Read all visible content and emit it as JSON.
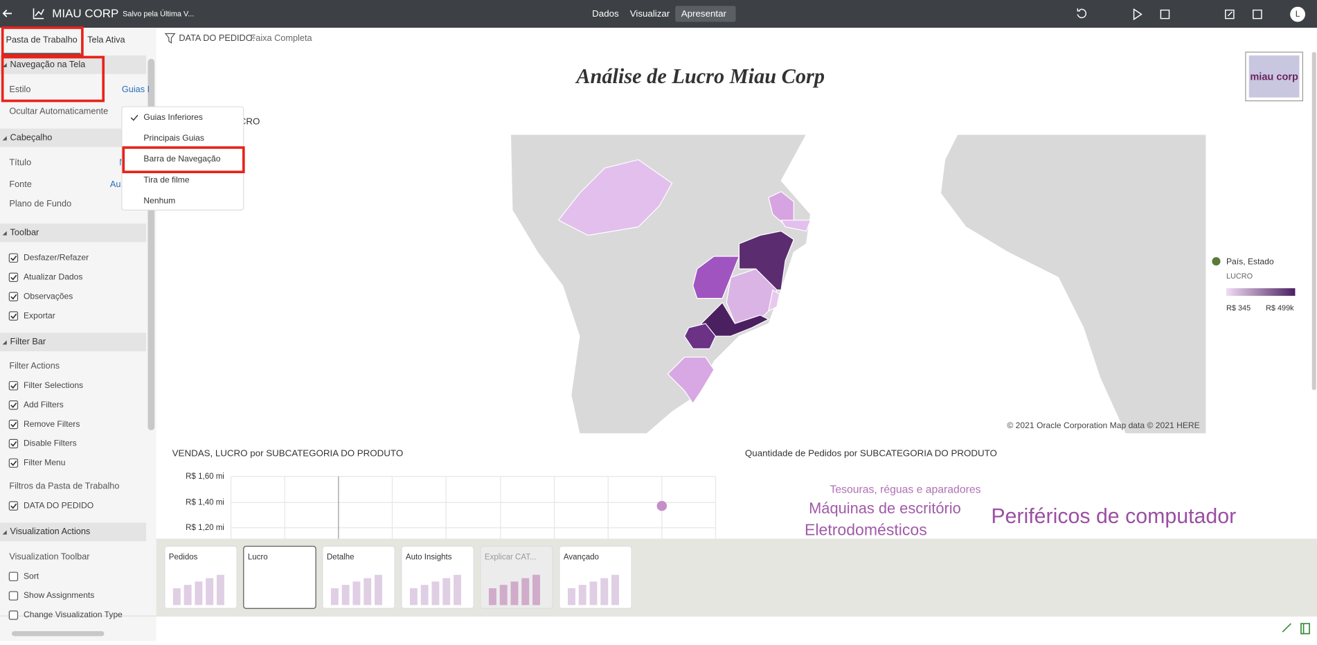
{
  "top_bar": {
    "app_name": "MIAU CORP",
    "save_status": "Salvo pela Última V...",
    "nav": [
      "Dados",
      "Visualizar",
      "Apresentar"
    ],
    "active_nav": 2,
    "avatar": "L"
  },
  "left_panel": {
    "tabs": [
      "Pasta de Trabalho",
      "Tela Ativa"
    ],
    "sections": [
      {
        "title": "Navegação na Tela",
        "items": [
          {
            "label": "Estilo",
            "value": "Guias I"
          },
          {
            "label": "Ocultar Automaticamente"
          }
        ]
      },
      {
        "title": "Cabeçalho",
        "items": [
          {
            "label": "Título",
            "value": "N"
          },
          {
            "label": "Fonte",
            "value": "Au"
          },
          {
            "label": "Plano de Fundo"
          }
        ]
      },
      {
        "title": "Toolbar",
        "items": [
          {
            "label": "Desfazer/Refazer",
            "checked": true
          },
          {
            "label": "Atualizar Dados",
            "checked": true
          },
          {
            "label": "Observações",
            "checked": true
          },
          {
            "label": "Exportar",
            "checked": true
          }
        ]
      },
      {
        "title": "Filter Bar",
        "items": [
          {
            "label": "Filter Actions"
          },
          {
            "label": "Filter Selections",
            "checked": true
          },
          {
            "label": "Add Filters",
            "checked": true
          },
          {
            "label": "Remove Filters",
            "checked": true
          },
          {
            "label": "Disable Filters",
            "checked": true
          },
          {
            "label": "Filter Menu",
            "checked": true
          },
          {
            "label": "Filtros da Pasta de Trabalho"
          },
          {
            "label": "DATA DO PEDIDO",
            "checked": true
          }
        ]
      },
      {
        "title": "Visualization Actions",
        "items": [
          {
            "label": "Visualization Toolbar"
          },
          {
            "label": "Sort",
            "checked": false
          },
          {
            "label": "Show Assignments",
            "checked": false
          },
          {
            "label": "Change Visualization Type",
            "checked": false
          }
        ]
      }
    ]
  },
  "dropdown": {
    "items": [
      "Guias Inferiores",
      "Principais Guias",
      "Barra de Navegação",
      "Tira de filme",
      "Nenhum"
    ],
    "checked": 0,
    "highlighted": 2
  },
  "canvas": {
    "filter": {
      "label": "DATA DO PEDIDO:",
      "value": "Faixa Completa"
    },
    "title": "Análise de Lucro Miau Corp",
    "logo": "miau corp",
    "map": {
      "title": "LUCRO",
      "attribution": "© 2021 Oracle Corporation   Map data © 2021 HERE",
      "legend": {
        "title": "País, Estado",
        "subtitle": "LUCRO",
        "min_label": "R$ 345",
        "max_label": "R$ 499k"
      }
    },
    "bar_chart": {
      "title": "VENDAS, LUCRO por SUBCATEGORIA DO PRODUTO",
      "y_tick_labels": [
        "R$ 1,60 mi",
        "R$ 1,40 mi",
        "R$ 1,20 mi"
      ]
    },
    "word_cloud": {
      "title": "Quantidade de Pedidos por SUBCATEGORIA DO PRODUTO",
      "words": [
        "Tesouras, réguas e aparadores",
        "Máquinas de escritório",
        "Periféricos de computador",
        "Eletrodomésticos"
      ]
    }
  },
  "thumbnails": {
    "items": [
      "Pedidos",
      "Lucro",
      "Detalhe",
      "Auto Insights",
      "Explicar CAT...",
      "Avançado"
    ],
    "selected": 1,
    "disabled": 4
  }
}
